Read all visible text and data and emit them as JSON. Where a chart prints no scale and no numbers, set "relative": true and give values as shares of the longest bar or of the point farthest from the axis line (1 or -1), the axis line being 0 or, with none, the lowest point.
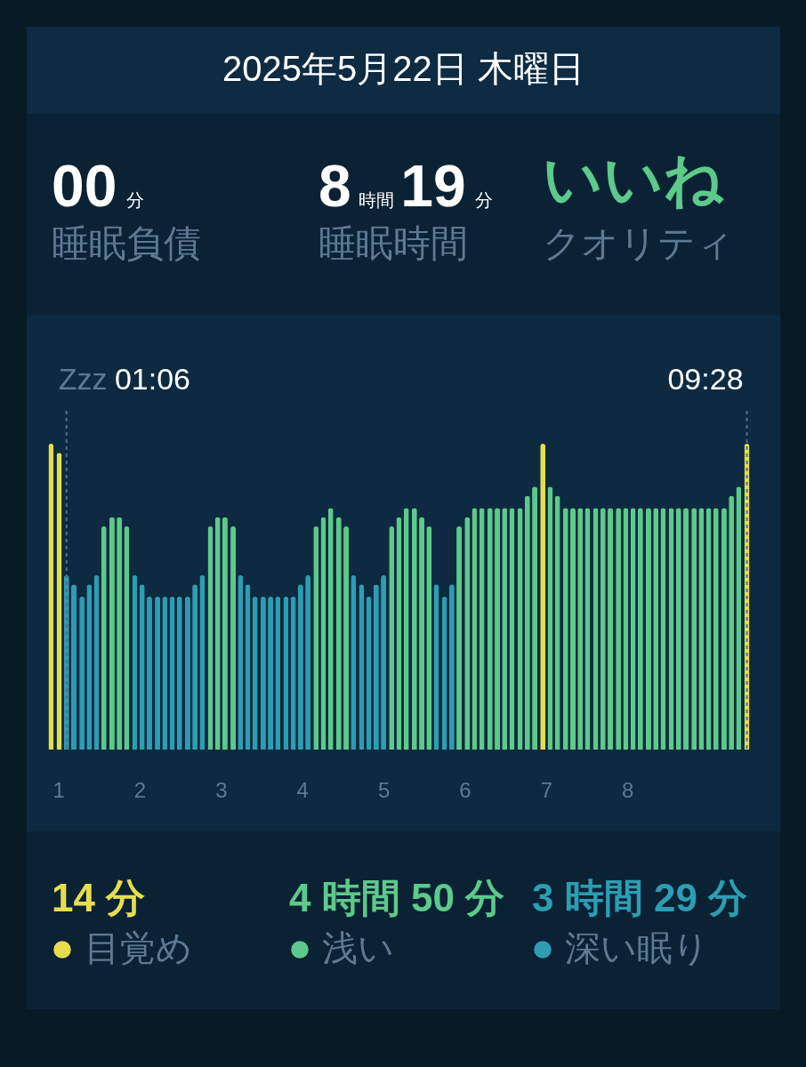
{
  "chart_data": [
    {
      "type": "other",
      "title": "2025年5月22日 木曜日",
      "annotations": [
        "00分",
        "睡眠負債",
        "8時間19分",
        "睡眠時間",
        "いいね",
        "クオリティ"
      ]
    },
    {
      "type": "bar",
      "relative": true,
      "xlim": [
        0.61,
        9.88
      ],
      "xticks": [
        1,
        2,
        3,
        4,
        5,
        6,
        7,
        8
      ],
      "series": [
        {
          "name": "目覚め",
          "color": "#e6dd4f",
          "x": [
            0.91,
            1.01,
            6.96,
            9.47
          ],
          "values": [
            1.0,
            0.97,
            1.0,
            1.0
          ]
        },
        {
          "name": "浅い",
          "color": "#5dc98a",
          "x": [
            1.56,
            1.66,
            1.75,
            1.84,
            2.87,
            2.96,
            3.05,
            3.15,
            4.17,
            4.26,
            4.35,
            4.45,
            4.54,
            5.1,
            5.19,
            5.28,
            5.38,
            5.47,
            5.56,
            5.93,
            6.03,
            6.12,
            6.21,
            6.31,
            6.4,
            6.49,
            6.58,
            6.68,
            6.77,
            6.86,
            7.05,
            7.14,
            7.24,
            7.33,
            7.42,
            7.51,
            7.61,
            7.7,
            7.79,
            7.89,
            7.98,
            8.07,
            8.16,
            8.26,
            8.35,
            8.44,
            8.54,
            8.63,
            8.72,
            8.82,
            8.91,
            9.0,
            9.09,
            9.19,
            9.28,
            9.37
          ],
          "values": [
            0.73,
            0.76,
            0.76,
            0.73,
            0.73,
            0.76,
            0.76,
            0.73,
            0.73,
            0.76,
            0.79,
            0.76,
            0.73,
            0.73,
            0.76,
            0.79,
            0.79,
            0.76,
            0.73,
            0.73,
            0.76,
            0.79,
            0.79,
            0.79,
            0.79,
            0.79,
            0.79,
            0.79,
            0.83,
            0.86,
            0.86,
            0.83,
            0.79,
            0.79,
            0.79,
            0.79,
            0.79,
            0.79,
            0.79,
            0.79,
            0.79,
            0.79,
            0.79,
            0.79,
            0.79,
            0.79,
            0.79,
            0.79,
            0.79,
            0.79,
            0.79,
            0.79,
            0.79,
            0.79,
            0.83,
            0.86
          ]
        },
        {
          "name": "深い眠り",
          "color": "#2d9db2",
          "x": [
            1.1,
            1.19,
            1.29,
            1.38,
            1.47,
            1.94,
            2.03,
            2.12,
            2.22,
            2.31,
            2.4,
            2.49,
            2.59,
            2.68,
            2.77,
            3.24,
            3.33,
            3.42,
            3.52,
            3.61,
            3.7,
            3.8,
            3.89,
            3.98,
            4.07,
            4.63,
            4.73,
            4.82,
            4.91,
            5.0,
            5.65,
            5.75,
            5.84
          ],
          "values": [
            0.57,
            0.54,
            0.5,
            0.54,
            0.57,
            0.57,
            0.54,
            0.5,
            0.5,
            0.5,
            0.5,
            0.5,
            0.5,
            0.54,
            0.57,
            0.57,
            0.54,
            0.5,
            0.5,
            0.5,
            0.5,
            0.5,
            0.5,
            0.54,
            0.57,
            0.57,
            0.54,
            0.5,
            0.54,
            0.57,
            0.54,
            0.5,
            0.54
          ]
        }
      ],
      "ref_lines": [
        {
          "axis": "x",
          "value": 1.1,
          "label": "Zzz 01:06",
          "line_style": "dashed",
          "color": "#4f6e86"
        },
        {
          "axis": "x",
          "value": 9.47,
          "label": "09:28",
          "line_style": "dashed",
          "color": "#4f6e86"
        }
      ],
      "legend": "bottom",
      "annotations": [
        "14 分",
        "4 時間 50 分",
        "3 時間 29 分"
      ]
    }
  ]
}
